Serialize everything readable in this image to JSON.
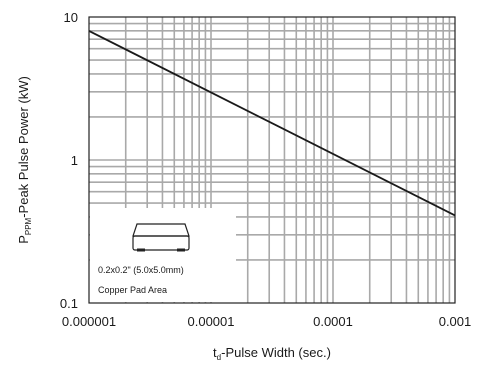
{
  "chart_data": {
    "type": "line",
    "x_scale": "log",
    "y_scale": "log",
    "xlim": [
      1e-06,
      0.001
    ],
    "ylim": [
      0.1,
      10
    ],
    "x_ticks": [
      "0.000001",
      "0.00001",
      "0.0001",
      "0.001"
    ],
    "y_ticks": [
      "10",
      "1",
      "0.1"
    ],
    "xlabel": {
      "prefix": "t",
      "subscript": "d",
      "suffix": "-Pulse Width (sec.)"
    },
    "ylabel": {
      "prefix": "P",
      "subscript": "PPM",
      "suffix": "-Peak Pulse Power (kW)"
    },
    "grid": true,
    "series": [
      {
        "x": [
          1e-06,
          0.001
        ],
        "y": [
          8.0,
          0.41
        ]
      }
    ],
    "inset": {
      "line1": "0.2x0.2\" (5.0x5.0mm)",
      "line2": "Copper Pad Area"
    }
  }
}
